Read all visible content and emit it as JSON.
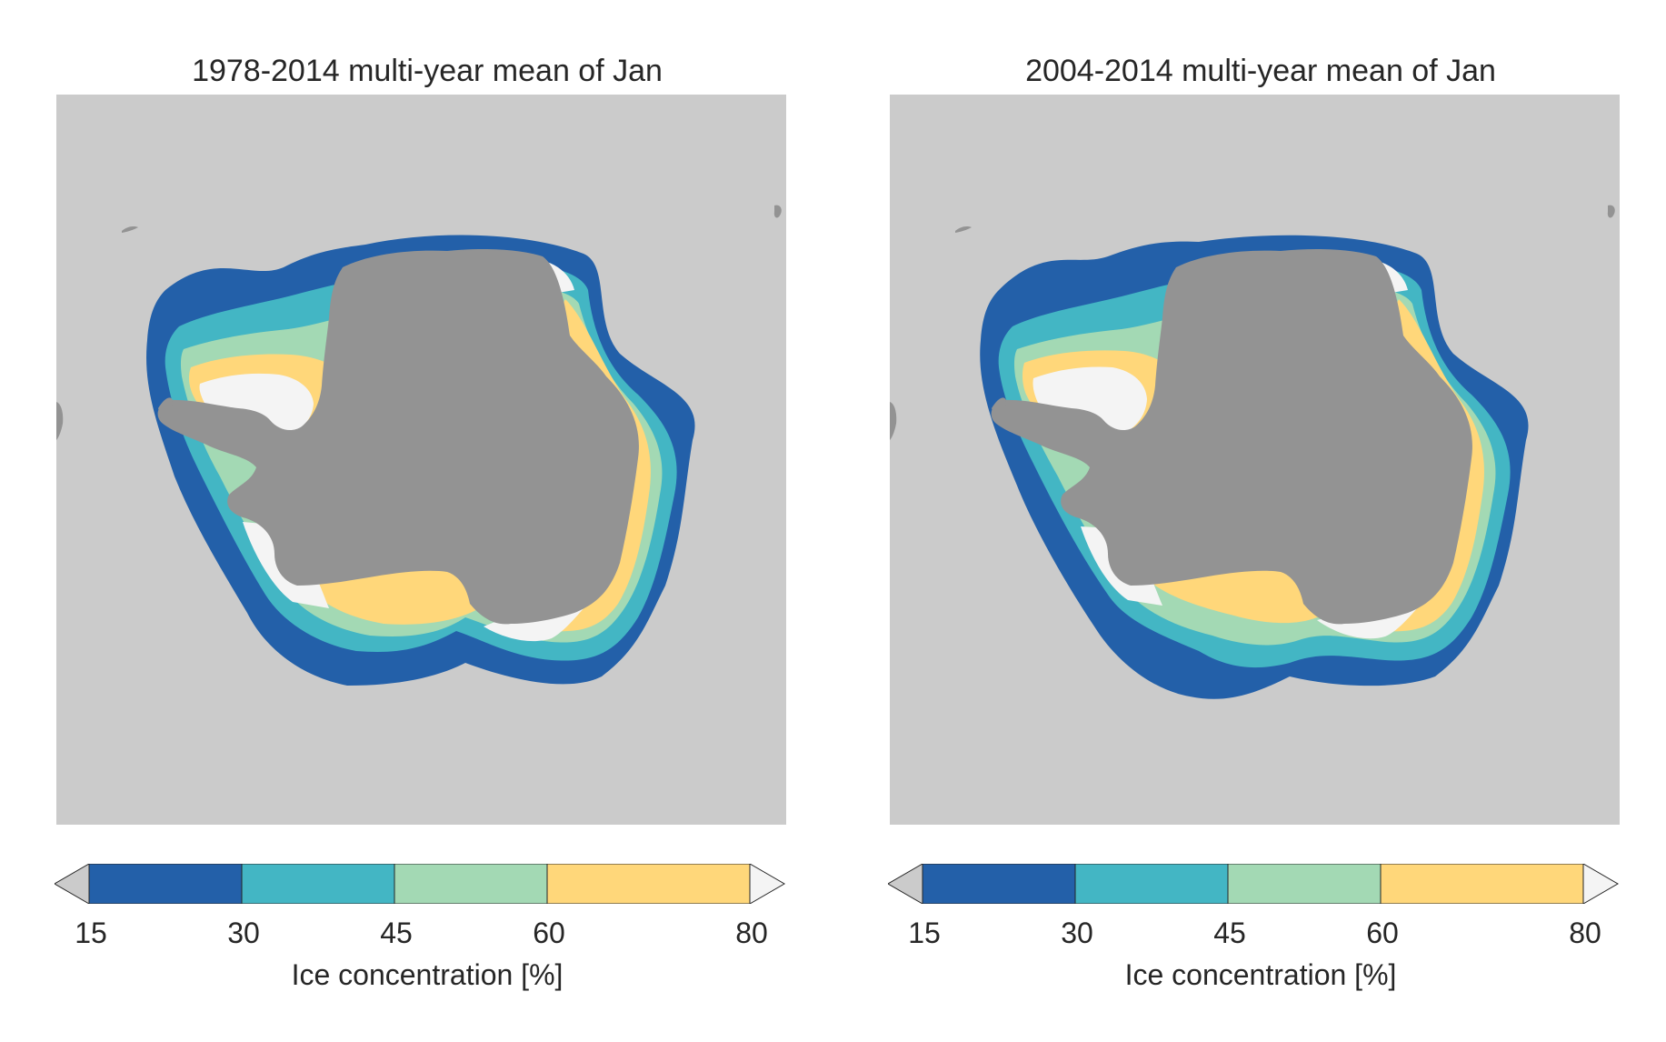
{
  "colors": {
    "background": "#cbcbcb",
    "land": "#939393",
    "bin_15_30": "#2360a9",
    "bin_30_45": "#43b6c4",
    "bin_45_60": "#a3d9b4",
    "bin_60_80": "#ffd77a",
    "above_80": "#f4f4f4"
  },
  "colorbar": {
    "ticks": [
      "15",
      "30",
      "45",
      "60",
      "80"
    ],
    "label": "Ice concentration [%]",
    "bins": [
      {
        "from": 15,
        "to": 30,
        "color": "#2360a9"
      },
      {
        "from": 30,
        "to": 45,
        "color": "#43b6c4"
      },
      {
        "from": 45,
        "to": 60,
        "color": "#a3d9b4"
      },
      {
        "from": 60,
        "to": 80,
        "color": "#ffd77a"
      }
    ],
    "under_color": "#cbcbcb",
    "over_color": "#f4f4f4"
  },
  "panels": [
    {
      "title": "1978-2014 multi-year mean of Jan"
    },
    {
      "title": "2004-2014 multi-year mean of Jan"
    }
  ]
}
